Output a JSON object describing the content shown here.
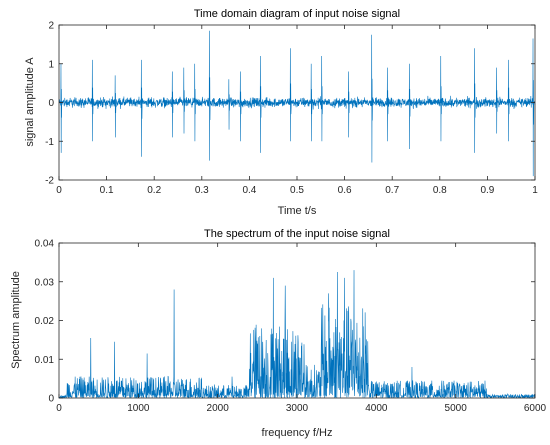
{
  "colors": {
    "series": "#0072BD",
    "axis": "#262626",
    "background": "#ffffff"
  },
  "chart_data": [
    {
      "type": "line",
      "title": "Time domain diagram of input noise signal",
      "xlabel": "Time t/s",
      "ylabel": "signal amplitude A",
      "xlim": [
        0,
        1
      ],
      "ylim": [
        -2,
        2
      ],
      "xticks": [
        0,
        0.1,
        0.2,
        0.3,
        0.4,
        0.5,
        0.6,
        0.7,
        0.8,
        0.9,
        1
      ],
      "xtick_labels": [
        "0",
        "0.1",
        "0.2",
        "0.3",
        "0.4",
        "0.5",
        "0.6",
        "0.7",
        "0.8",
        "0.9",
        "1"
      ],
      "yticks": [
        -2,
        -1,
        0,
        1,
        2
      ],
      "ytick_labels": [
        "-2",
        "-1",
        "0",
        "1",
        "2"
      ],
      "grid": false,
      "noise_amplitude": 0.18,
      "impulses": [
        {
          "x": 0.004,
          "pos": 1.0,
          "neg": -1.3
        },
        {
          "x": 0.07,
          "pos": 1.1,
          "neg": -1.0
        },
        {
          "x": 0.118,
          "pos": 0.7,
          "neg": -0.9
        },
        {
          "x": 0.173,
          "pos": 1.1,
          "neg": -1.4
        },
        {
          "x": 0.238,
          "pos": 0.8,
          "neg": -0.9
        },
        {
          "x": 0.262,
          "pos": 0.9,
          "neg": -0.8
        },
        {
          "x": 0.285,
          "pos": 1.0,
          "neg": -1.0
        },
        {
          "x": 0.316,
          "pos": 1.85,
          "neg": -1.5
        },
        {
          "x": 0.357,
          "pos": 0.6,
          "neg": -0.7
        },
        {
          "x": 0.381,
          "pos": 0.8,
          "neg": -1.0
        },
        {
          "x": 0.423,
          "pos": 1.2,
          "neg": -1.3
        },
        {
          "x": 0.486,
          "pos": 1.4,
          "neg": -1.0
        },
        {
          "x": 0.53,
          "pos": 1.0,
          "neg": -1.0
        },
        {
          "x": 0.552,
          "pos": 1.2,
          "neg": -1.0
        },
        {
          "x": 0.608,
          "pos": 0.8,
          "neg": -0.9
        },
        {
          "x": 0.657,
          "pos": 1.75,
          "neg": -1.55
        },
        {
          "x": 0.69,
          "pos": 0.9,
          "neg": -1.0
        },
        {
          "x": 0.736,
          "pos": 1.0,
          "neg": -1.2
        },
        {
          "x": 0.802,
          "pos": 1.2,
          "neg": -1.0
        },
        {
          "x": 0.873,
          "pos": 1.4,
          "neg": -1.3
        },
        {
          "x": 0.919,
          "pos": 0.9,
          "neg": -0.8
        },
        {
          "x": 0.944,
          "pos": 1.1,
          "neg": -1.0
        },
        {
          "x": 0.996,
          "pos": 1.65,
          "neg": -1.9
        }
      ]
    },
    {
      "type": "line",
      "title": "The spectrum of the input noise signal",
      "xlabel": "frequency f/Hz",
      "ylabel": "Spectrum amplitude",
      "xlim": [
        0,
        6000
      ],
      "ylim": [
        0,
        0.04
      ],
      "xticks": [
        0,
        1000,
        2000,
        3000,
        4000,
        5000,
        6000
      ],
      "xtick_labels": [
        "0",
        "1000",
        "2000",
        "3000",
        "4000",
        "5000",
        "6000"
      ],
      "yticks": [
        0,
        0.01,
        0.02,
        0.03,
        0.04
      ],
      "ytick_labels": [
        "0",
        "0.01",
        "0.02",
        "0.03",
        "0.04"
      ],
      "grid": false,
      "bands": [
        {
          "from": 100,
          "to": 1800,
          "level": 0.0025
        },
        {
          "from": 1800,
          "to": 2400,
          "level": 0.0015
        },
        {
          "from": 2400,
          "to": 3100,
          "level": 0.009
        },
        {
          "from": 3100,
          "to": 3300,
          "level": 0.004
        },
        {
          "from": 3300,
          "to": 3900,
          "level": 0.011
        },
        {
          "from": 3900,
          "to": 5400,
          "level": 0.002
        },
        {
          "from": 5400,
          "to": 6000,
          "level": 0.0004
        }
      ],
      "peaks": [
        {
          "f": 400,
          "a": 0.0155
        },
        {
          "f": 700,
          "a": 0.0145
        },
        {
          "f": 1110,
          "a": 0.0115
        },
        {
          "f": 1450,
          "a": 0.028
        },
        {
          "f": 2180,
          "a": 0.0055
        },
        {
          "f": 2530,
          "a": 0.016
        },
        {
          "f": 2700,
          "a": 0.031
        },
        {
          "f": 2850,
          "a": 0.029
        },
        {
          "f": 3400,
          "a": 0.027
        },
        {
          "f": 3510,
          "a": 0.0325
        },
        {
          "f": 3600,
          "a": 0.031
        },
        {
          "f": 3720,
          "a": 0.033
        },
        {
          "f": 4450,
          "a": 0.008
        }
      ]
    }
  ]
}
